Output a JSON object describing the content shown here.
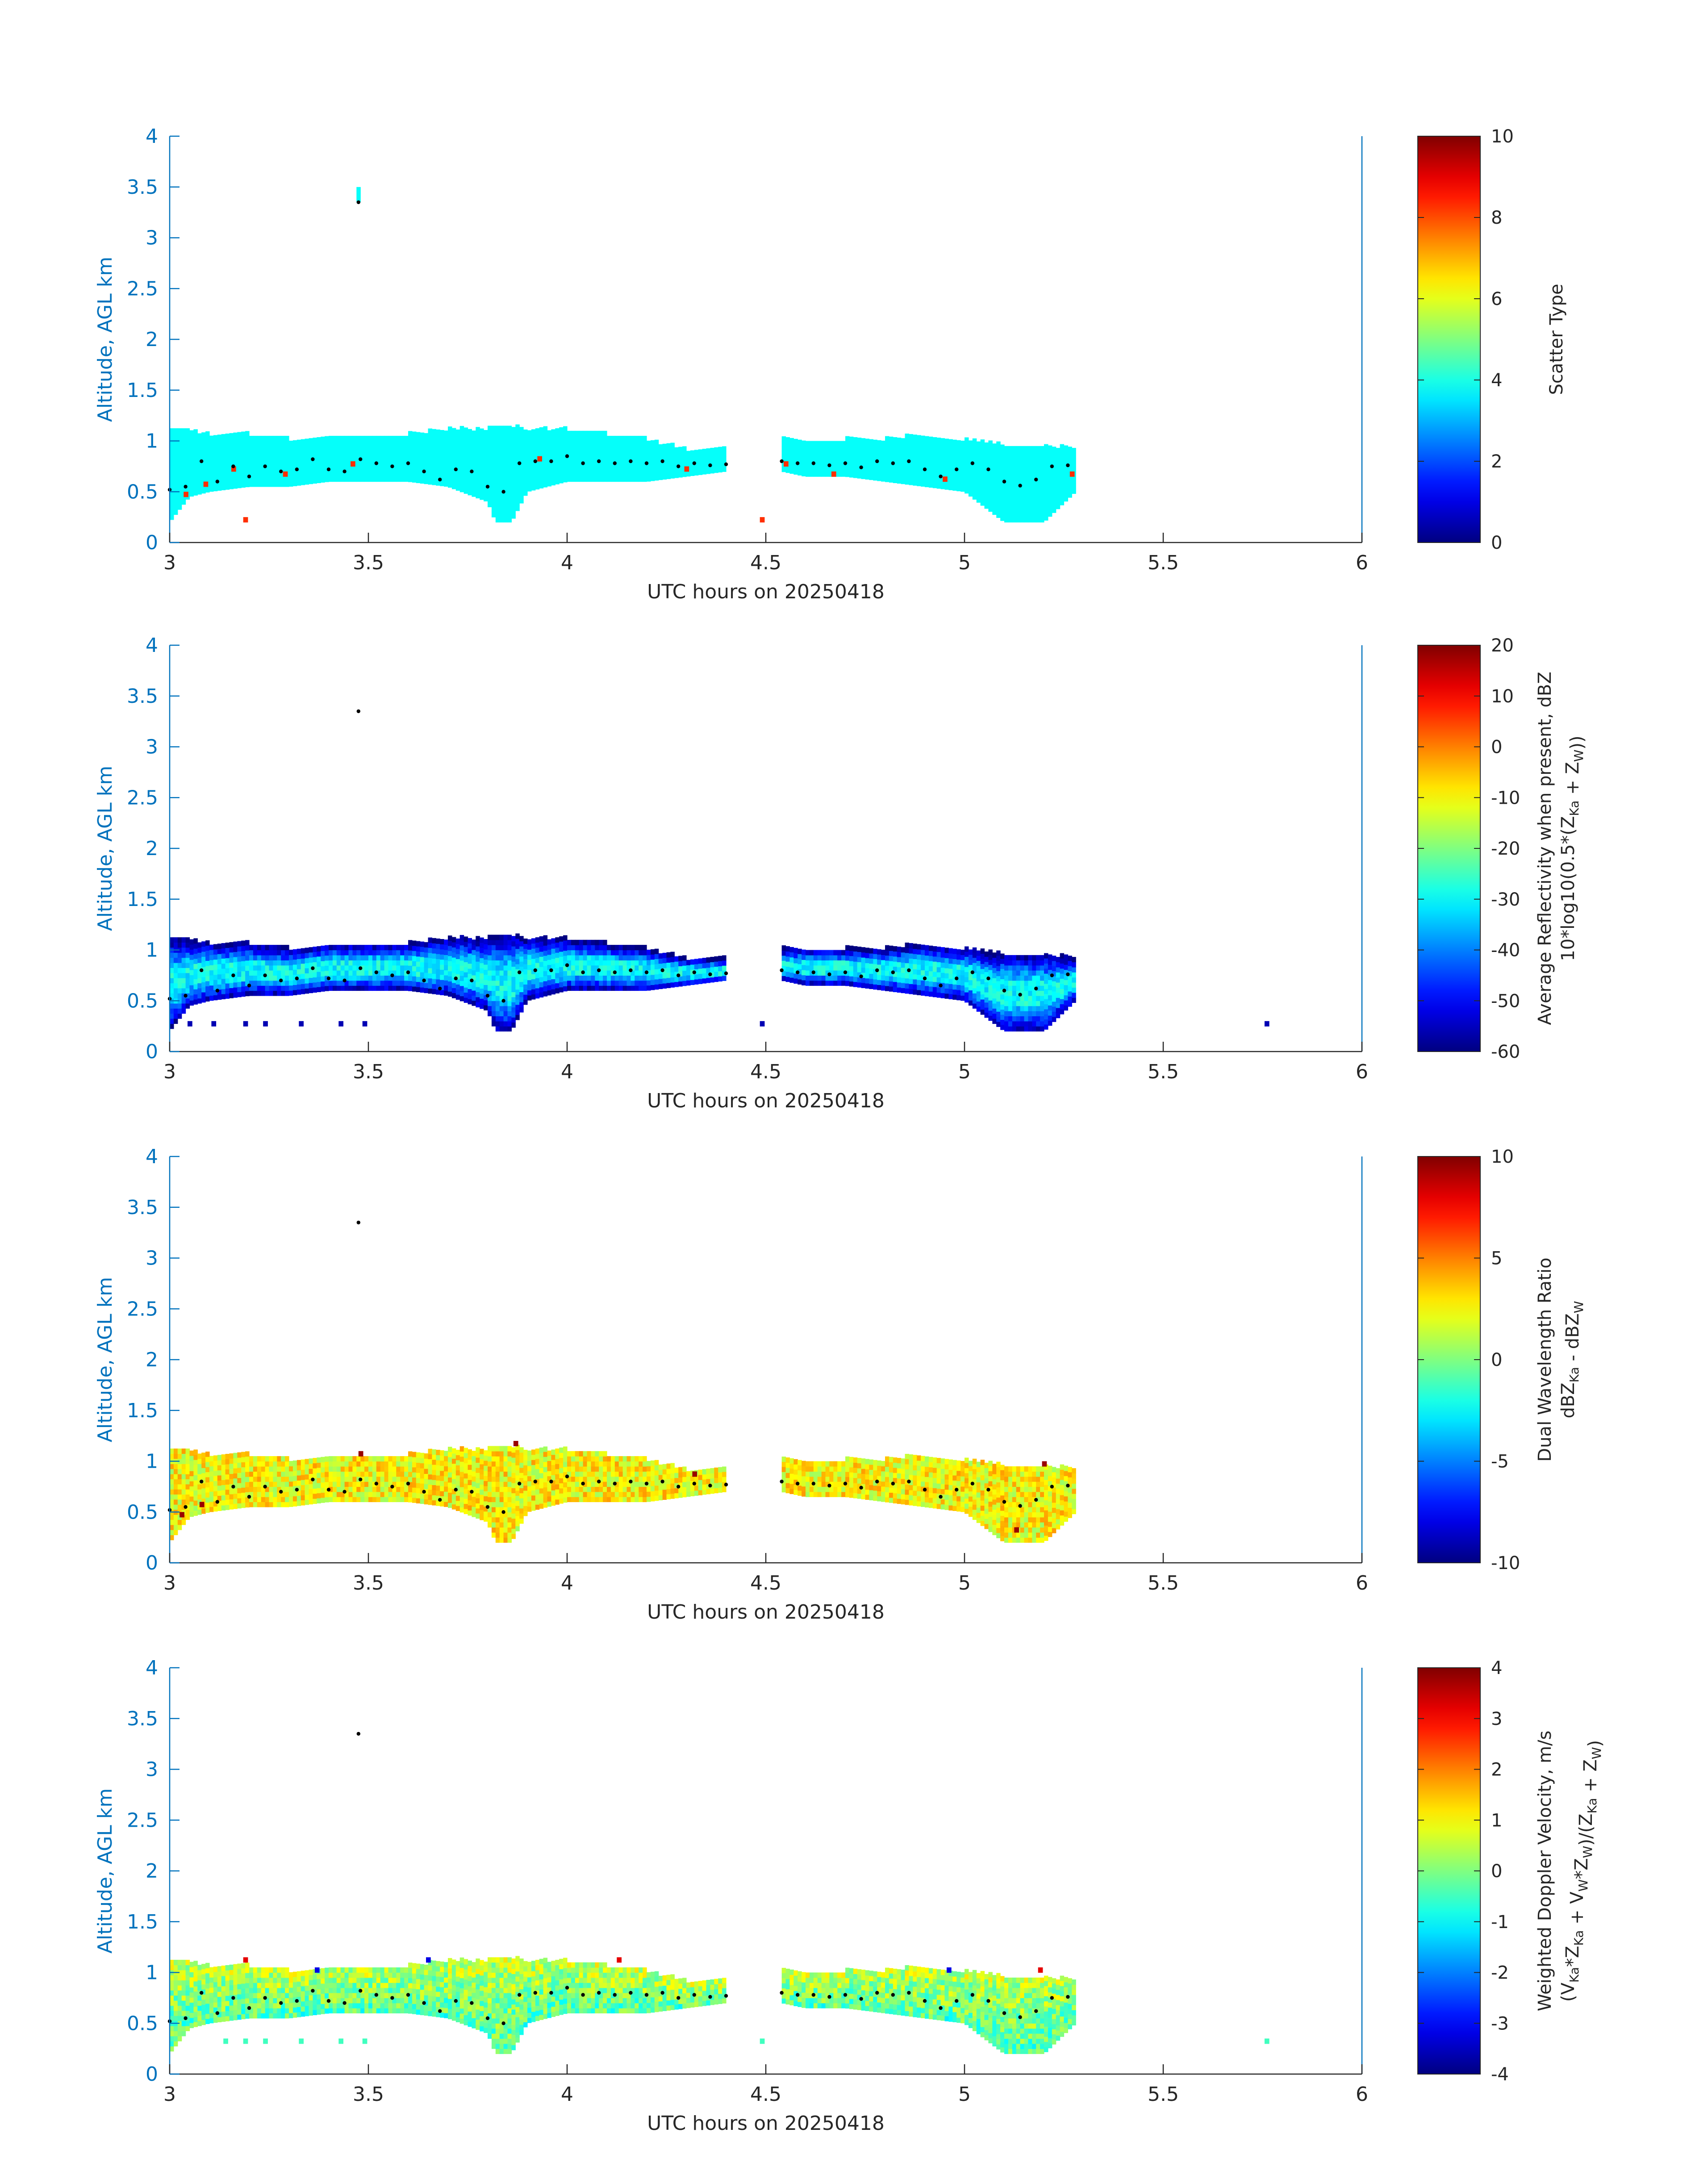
{
  "colors": {
    "axis": "#0072BD",
    "text": "#262626",
    "dot": "#000000"
  },
  "chart_data": [
    {
      "type": "heatmap",
      "xlabel": "UTC hours on 20250418",
      "ylabel": "Altitude, AGL km",
      "xlim": [
        3,
        6
      ],
      "ylim": [
        0,
        4
      ],
      "xticks": [
        "3",
        "3.5",
        "4",
        "4.5",
        "5",
        "5.5",
        "6"
      ],
      "yticks": [
        "0",
        "0.5",
        "1",
        "1.5",
        "2",
        "2.5",
        "3",
        "3.5",
        "4"
      ],
      "colorbar": {
        "label_lines": [
          "Scatter Type"
        ],
        "lim": [
          0,
          10
        ],
        "ticks": [
          "0",
          "2",
          "4",
          "6",
          "8",
          "10"
        ]
      },
      "field": "scatter",
      "base_value": 3.8,
      "variability": 0,
      "outliers": [
        {
          "x": 3.19,
          "y": 0.2,
          "v": 8.3
        },
        {
          "x": 4.49,
          "y": 0.2,
          "v": 8.3
        },
        {
          "x": 5.27,
          "y": 0.65,
          "v": 8.3
        },
        {
          "x": 3.04,
          "y": 0.45,
          "v": 8.3
        },
        {
          "x": 3.09,
          "y": 0.55,
          "v": 8.3
        },
        {
          "x": 3.16,
          "y": 0.7,
          "v": 8.3
        },
        {
          "x": 3.29,
          "y": 0.65,
          "v": 8.3
        },
        {
          "x": 3.46,
          "y": 0.75,
          "v": 8.3
        },
        {
          "x": 3.93,
          "y": 0.8,
          "v": 8.3
        },
        {
          "x": 4.3,
          "y": 0.7,
          "v": 8.3
        },
        {
          "x": 4.55,
          "y": 0.75,
          "v": 8.3
        },
        {
          "x": 4.67,
          "y": 0.65,
          "v": 8.3
        },
        {
          "x": 4.95,
          "y": 0.6,
          "v": 8.3
        }
      ]
    },
    {
      "type": "heatmap",
      "xlabel": "UTC hours on 20250418",
      "ylabel": "Altitude, AGL km",
      "xlim": [
        3,
        6
      ],
      "ylim": [
        0,
        4
      ],
      "xticks": [
        "3",
        "3.5",
        "4",
        "4.5",
        "5",
        "5.5",
        "6"
      ],
      "yticks": [
        "0",
        "0.5",
        "1",
        "1.5",
        "2",
        "2.5",
        "3",
        "3.5",
        "4"
      ],
      "colorbar": {
        "label_lines": [
          "Average Reflectivity when present, dBZ",
          "10*log10(0.5*(Z<sub>Ka</sub> + Z<sub>W</sub>))"
        ],
        "lim": [
          -60,
          20
        ],
        "ticks": [
          "-60",
          "-50",
          "-40",
          "-30",
          "-20",
          "-10",
          "0",
          "10",
          "20"
        ]
      },
      "field": "reflectivity",
      "base_value": -40,
      "variability": 10,
      "outliers": [
        {
          "x": 3.05,
          "y": 0.25,
          "v": -56
        },
        {
          "x": 3.11,
          "y": 0.25,
          "v": -56
        },
        {
          "x": 3.19,
          "y": 0.25,
          "v": -56
        },
        {
          "x": 3.24,
          "y": 0.25,
          "v": -56
        },
        {
          "x": 3.33,
          "y": 0.25,
          "v": -56
        },
        {
          "x": 3.43,
          "y": 0.25,
          "v": -56
        },
        {
          "x": 3.49,
          "y": 0.25,
          "v": -56
        },
        {
          "x": 4.49,
          "y": 0.25,
          "v": -56
        },
        {
          "x": 5.76,
          "y": 0.25,
          "v": -56
        }
      ]
    },
    {
      "type": "heatmap",
      "xlabel": "UTC hours on 20250418",
      "ylabel": "Altitude, AGL km",
      "xlim": [
        3,
        6
      ],
      "ylim": [
        0,
        4
      ],
      "xticks": [
        "3",
        "3.5",
        "4",
        "4.5",
        "5",
        "5.5",
        "6"
      ],
      "yticks": [
        "0",
        "0.5",
        "1",
        "1.5",
        "2",
        "2.5",
        "3",
        "3.5",
        "4"
      ],
      "colorbar": {
        "label_lines": [
          "Dual Wavelength Ratio",
          "dBZ<sub>Ka</sub> - dBZ<sub>W</sub>"
        ],
        "lim": [
          -10,
          10
        ],
        "ticks": [
          "-10",
          "-5",
          "0",
          "5",
          "10"
        ]
      },
      "field": "dwr",
      "base_value": 2,
      "variability": 2,
      "outliers": [
        {
          "x": 3.03,
          "y": 0.45,
          "v": 9.5
        },
        {
          "x": 3.08,
          "y": 0.55,
          "v": 9.5
        },
        {
          "x": 3.48,
          "y": 1.05,
          "v": 9.5
        },
        {
          "x": 3.87,
          "y": 1.15,
          "v": 9.5
        },
        {
          "x": 4.32,
          "y": 0.85,
          "v": 9.5
        },
        {
          "x": 5.13,
          "y": 0.3,
          "v": 9.5
        },
        {
          "x": 5.2,
          "y": 0.95,
          "v": 9.5
        }
      ]
    },
    {
      "type": "heatmap",
      "xlabel": "UTC hours on 20250418",
      "ylabel": "Altitude, AGL km",
      "xlim": [
        3,
        6
      ],
      "ylim": [
        0,
        4
      ],
      "xticks": [
        "3",
        "3.5",
        "4",
        "4.5",
        "5",
        "5.5",
        "6"
      ],
      "yticks": [
        "0",
        "0.5",
        "1",
        "1.5",
        "2",
        "2.5",
        "3",
        "3.5",
        "4"
      ],
      "colorbar": {
        "label_lines": [
          "Weighted Doppler Velocity, m/s",
          "(V<sub>Ka</sub>*Z<sub>Ka</sub> + V<sub>W</sub>*Z<sub>W</sub>)/(Z<sub>Ka</sub> + Z<sub>W</sub>)"
        ],
        "lim": [
          -4,
          4
        ],
        "ticks": [
          "-4",
          "-3",
          "-2",
          "-1",
          "0",
          "1",
          "2",
          "3",
          "4"
        ]
      },
      "field": "velocity",
      "base_value": 0,
      "variability": 0.8,
      "outliers": [
        {
          "x": 3.14,
          "y": 0.3,
          "v": -0.5
        },
        {
          "x": 3.19,
          "y": 0.3,
          "v": -0.5
        },
        {
          "x": 3.24,
          "y": 0.3,
          "v": -0.5
        },
        {
          "x": 3.33,
          "y": 0.3,
          "v": -0.5
        },
        {
          "x": 3.43,
          "y": 0.3,
          "v": -0.5
        },
        {
          "x": 3.49,
          "y": 0.3,
          "v": -0.5
        },
        {
          "x": 4.49,
          "y": 0.3,
          "v": -0.5
        },
        {
          "x": 5.76,
          "y": 0.3,
          "v": -0.5
        },
        {
          "x": 3.19,
          "y": 1.1,
          "v": 3.2
        },
        {
          "x": 4.13,
          "y": 1.1,
          "v": 3.2
        },
        {
          "x": 5.19,
          "y": 1.0,
          "v": 3.2
        },
        {
          "x": 3.37,
          "y": 1.0,
          "v": -3.2
        },
        {
          "x": 4.96,
          "y": 1.0,
          "v": -3.2
        },
        {
          "x": 3.65,
          "y": 1.1,
          "v": -3.2
        }
      ]
    }
  ],
  "cloud_layer": {
    "segments": [
      [
        3.0,
        4.4
      ],
      [
        4.54,
        5.28
      ]
    ],
    "top": [
      [
        3.0,
        1.1
      ],
      [
        3.1,
        1.05
      ],
      [
        3.2,
        1.05
      ],
      [
        3.3,
        1.0
      ],
      [
        3.4,
        1.05
      ],
      [
        3.5,
        1.05
      ],
      [
        3.6,
        1.05
      ],
      [
        3.7,
        1.1
      ],
      [
        3.8,
        1.1
      ],
      [
        3.85,
        1.15
      ],
      [
        3.9,
        1.1
      ],
      [
        4.0,
        1.1
      ],
      [
        4.1,
        1.05
      ],
      [
        4.2,
        1.0
      ],
      [
        4.3,
        0.9
      ],
      [
        4.4,
        0.9
      ],
      [
        4.54,
        1.0
      ],
      [
        4.6,
        1.0
      ],
      [
        4.7,
        1.0
      ],
      [
        4.8,
        1.0
      ],
      [
        4.9,
        1.05
      ],
      [
        5.0,
        1.0
      ],
      [
        5.1,
        0.95
      ],
      [
        5.2,
        0.95
      ],
      [
        5.28,
        0.9
      ]
    ],
    "bottom": [
      [
        3.0,
        0.2
      ],
      [
        3.05,
        0.45
      ],
      [
        3.1,
        0.5
      ],
      [
        3.2,
        0.55
      ],
      [
        3.3,
        0.55
      ],
      [
        3.4,
        0.6
      ],
      [
        3.5,
        0.6
      ],
      [
        3.6,
        0.6
      ],
      [
        3.7,
        0.55
      ],
      [
        3.8,
        0.4
      ],
      [
        3.82,
        0.2
      ],
      [
        3.86,
        0.2
      ],
      [
        3.9,
        0.5
      ],
      [
        4.0,
        0.6
      ],
      [
        4.1,
        0.6
      ],
      [
        4.2,
        0.6
      ],
      [
        4.3,
        0.65
      ],
      [
        4.4,
        0.7
      ],
      [
        4.54,
        0.7
      ],
      [
        4.6,
        0.65
      ],
      [
        4.7,
        0.65
      ],
      [
        4.8,
        0.6
      ],
      [
        4.9,
        0.55
      ],
      [
        5.0,
        0.5
      ],
      [
        5.1,
        0.2
      ],
      [
        5.2,
        0.2
      ],
      [
        5.28,
        0.5
      ]
    ],
    "isolated_echo": {
      "x": 3.475,
      "y0": 3.35,
      "y1": 3.5
    }
  },
  "dotted_trace": {
    "points": [
      [
        3.0,
        0.52
      ],
      [
        3.04,
        0.55
      ],
      [
        3.08,
        0.8
      ],
      [
        3.12,
        0.6
      ],
      [
        3.16,
        0.75
      ],
      [
        3.2,
        0.65
      ],
      [
        3.24,
        0.75
      ],
      [
        3.28,
        0.7
      ],
      [
        3.32,
        0.72
      ],
      [
        3.36,
        0.82
      ],
      [
        3.4,
        0.72
      ],
      [
        3.44,
        0.7
      ],
      [
        3.48,
        0.82
      ],
      [
        3.52,
        0.78
      ],
      [
        3.56,
        0.75
      ],
      [
        3.6,
        0.78
      ],
      [
        3.64,
        0.7
      ],
      [
        3.68,
        0.62
      ],
      [
        3.72,
        0.72
      ],
      [
        3.76,
        0.7
      ],
      [
        3.8,
        0.55
      ],
      [
        3.84,
        0.5
      ],
      [
        3.88,
        0.78
      ],
      [
        3.92,
        0.8
      ],
      [
        3.96,
        0.8
      ],
      [
        4.0,
        0.85
      ],
      [
        4.04,
        0.78
      ],
      [
        4.08,
        0.8
      ],
      [
        4.12,
        0.78
      ],
      [
        4.16,
        0.8
      ],
      [
        4.2,
        0.78
      ],
      [
        4.24,
        0.8
      ],
      [
        4.28,
        0.75
      ],
      [
        4.32,
        0.78
      ],
      [
        4.36,
        0.76
      ],
      [
        4.4,
        0.77
      ],
      [
        4.54,
        0.8
      ],
      [
        4.58,
        0.78
      ],
      [
        4.62,
        0.78
      ],
      [
        4.66,
        0.76
      ],
      [
        4.7,
        0.78
      ],
      [
        4.74,
        0.74
      ],
      [
        4.78,
        0.8
      ],
      [
        4.82,
        0.78
      ],
      [
        4.86,
        0.8
      ],
      [
        4.9,
        0.72
      ],
      [
        4.94,
        0.65
      ],
      [
        4.98,
        0.72
      ],
      [
        5.02,
        0.78
      ],
      [
        5.06,
        0.72
      ],
      [
        5.1,
        0.6
      ],
      [
        5.14,
        0.56
      ],
      [
        5.18,
        0.62
      ],
      [
        5.22,
        0.75
      ],
      [
        5.26,
        0.76
      ]
    ],
    "isolated_point": {
      "x": 3.475,
      "y": 3.35
    }
  }
}
